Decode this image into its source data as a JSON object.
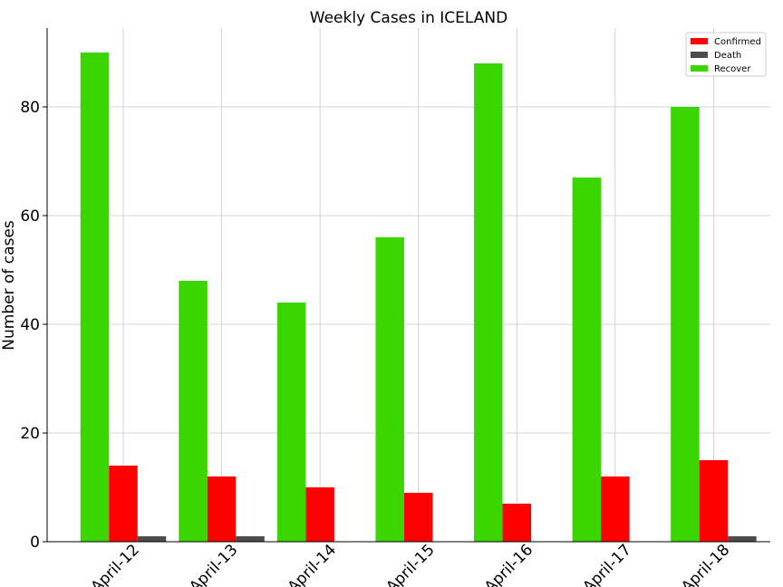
{
  "chart_data": {
    "type": "bar",
    "title": "Weekly Cases in ICELAND",
    "xlabel": "",
    "ylabel": "Number of cases",
    "categories": [
      "April-12",
      "April-13",
      "April-14",
      "April-15",
      "April-16",
      "April-17",
      "April-18"
    ],
    "ylim": [
      0,
      94.5
    ],
    "yticks": [
      0,
      20,
      40,
      60,
      80
    ],
    "grid": true,
    "legend_position": "top-right",
    "series": [
      {
        "name": "Recover",
        "color": "#3bd600",
        "values": [
          90,
          48,
          44,
          56,
          88,
          67,
          80
        ]
      },
      {
        "name": "Confirmed",
        "color": "#ff0000",
        "values": [
          14,
          12,
          10,
          9,
          7,
          12,
          15
        ]
      },
      {
        "name": "Death",
        "color": "#4d4d4d",
        "values": [
          1,
          1,
          0,
          0,
          0,
          0,
          1
        ]
      }
    ],
    "legend_order": [
      "Confirmed",
      "Death",
      "Recover"
    ]
  }
}
